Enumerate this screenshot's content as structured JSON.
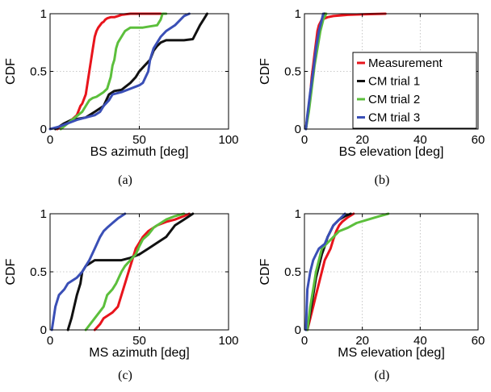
{
  "series_colors": {
    "Measurement": "#e8141c",
    "CM trial 1": "#111111",
    "CM trial 2": "#5cbf3c",
    "CM trial 3": "#3a4fb6"
  },
  "chart_data": [
    {
      "type": "line",
      "caption": "(a)",
      "xlabel": "BS azimuth [deg]",
      "ylabel": "CDF",
      "xlim": [
        0,
        100
      ],
      "ylim": [
        0,
        1
      ],
      "xticks": [
        "0",
        "50",
        "100"
      ],
      "yticks": [
        "0",
        "0.5",
        "1"
      ],
      "grid": true,
      "legend": null,
      "series": [
        {
          "name": "Measurement",
          "x": [
            4,
            10,
            15,
            17,
            18,
            20,
            21,
            22,
            23,
            24,
            25,
            26,
            27,
            28,
            29,
            30,
            31,
            32,
            34,
            36,
            38,
            40,
            45,
            50,
            58,
            62
          ],
          "y": [
            0,
            0.05,
            0.12,
            0.2,
            0.22,
            0.3,
            0.4,
            0.5,
            0.6,
            0.7,
            0.8,
            0.85,
            0.88,
            0.9,
            0.92,
            0.93,
            0.95,
            0.96,
            0.97,
            0.97,
            0.98,
            0.99,
            1,
            1,
            1,
            1
          ]
        },
        {
          "name": "CM trial 1",
          "x": [
            3,
            8,
            12,
            20,
            25,
            30,
            33,
            36,
            40,
            45,
            48,
            50,
            53,
            56,
            58,
            60,
            62,
            65,
            68,
            70,
            75,
            80,
            84,
            86,
            88
          ],
          "y": [
            0,
            0.05,
            0.08,
            0.1,
            0.15,
            0.2,
            0.3,
            0.33,
            0.34,
            0.4,
            0.45,
            0.5,
            0.55,
            0.6,
            0.68,
            0.72,
            0.75,
            0.77,
            0.77,
            0.77,
            0.77,
            0.78,
            0.9,
            0.95,
            1
          ]
        },
        {
          "name": "CM trial 2",
          "x": [
            6,
            10,
            14,
            18,
            20,
            22,
            24,
            26,
            28,
            30,
            32,
            34,
            35,
            36,
            37,
            38,
            40,
            42,
            45,
            48,
            52,
            56,
            60,
            62,
            63,
            65
          ],
          "y": [
            0,
            0.05,
            0.1,
            0.15,
            0.2,
            0.25,
            0.27,
            0.28,
            0.3,
            0.32,
            0.35,
            0.45,
            0.55,
            0.6,
            0.7,
            0.75,
            0.8,
            0.85,
            0.88,
            0.88,
            0.88,
            0.89,
            0.9,
            0.95,
            1,
            1
          ]
        },
        {
          "name": "CM trial 3",
          "x": [
            0,
            5,
            10,
            15,
            20,
            25,
            28,
            30,
            33,
            35,
            40,
            45,
            50,
            52,
            55,
            56,
            57,
            58,
            60,
            62,
            65,
            70,
            75,
            78
          ],
          "y": [
            0,
            0.02,
            0.05,
            0.08,
            0.1,
            0.12,
            0.15,
            0.2,
            0.25,
            0.3,
            0.32,
            0.35,
            0.38,
            0.4,
            0.5,
            0.6,
            0.65,
            0.7,
            0.75,
            0.8,
            0.85,
            0.9,
            0.98,
            1
          ]
        }
      ]
    },
    {
      "type": "line",
      "caption": "(b)",
      "xlabel": "BS elevation [deg]",
      "ylabel": "CDF",
      "xlim": [
        0,
        60
      ],
      "ylim": [
        0,
        1
      ],
      "xticks": [
        "0",
        "20",
        "40",
        "60"
      ],
      "yticks": [
        "0",
        "0.5",
        "1"
      ],
      "grid": true,
      "legend": "right",
      "series": [
        {
          "name": "Measurement",
          "x": [
            0.5,
            1,
            1.5,
            2,
            2.5,
            3,
            3.5,
            4,
            4.5,
            5,
            6,
            8,
            10,
            15,
            20,
            28
          ],
          "y": [
            0,
            0.1,
            0.2,
            0.3,
            0.45,
            0.55,
            0.65,
            0.75,
            0.85,
            0.9,
            0.95,
            0.97,
            0.98,
            0.99,
            0.995,
            1
          ]
        },
        {
          "name": "CM trial 1",
          "x": [
            0.5,
            1,
            2,
            3,
            4,
            5,
            6,
            7
          ],
          "y": [
            0,
            0.1,
            0.3,
            0.5,
            0.65,
            0.8,
            0.95,
            1
          ]
        },
        {
          "name": "CM trial 2",
          "x": [
            0.5,
            1.5,
            2.5,
            3.5,
            4.5,
            5.5,
            6.5,
            7.5
          ],
          "y": [
            0,
            0.15,
            0.35,
            0.55,
            0.7,
            0.85,
            0.95,
            1
          ]
        },
        {
          "name": "CM trial 3",
          "x": [
            0.5,
            1,
            2,
            3,
            4,
            5,
            6,
            6.5
          ],
          "y": [
            0,
            0.12,
            0.32,
            0.5,
            0.7,
            0.85,
            0.95,
            1
          ]
        }
      ]
    },
    {
      "type": "line",
      "caption": "(c)",
      "xlabel": "MS azimuth [deg]",
      "ylabel": "CDF",
      "xlim": [
        0,
        100
      ],
      "ylim": [
        0,
        1
      ],
      "xticks": [
        "0",
        "50",
        "100"
      ],
      "yticks": [
        "0",
        "0.5",
        "1"
      ],
      "grid": true,
      "legend": null,
      "series": [
        {
          "name": "Measurement",
          "x": [
            25,
            28,
            30,
            35,
            38,
            40,
            42,
            44,
            46,
            48,
            50,
            52,
            55,
            58,
            60,
            65,
            70,
            75,
            78
          ],
          "y": [
            0,
            0.05,
            0.1,
            0.15,
            0.2,
            0.3,
            0.4,
            0.5,
            0.6,
            0.7,
            0.75,
            0.8,
            0.85,
            0.88,
            0.9,
            0.93,
            0.95,
            0.98,
            1
          ]
        },
        {
          "name": "CM trial 1",
          "x": [
            10,
            12,
            15,
            17,
            18,
            20,
            25,
            30,
            35,
            40,
            45,
            50,
            55,
            60,
            65,
            70,
            75,
            80
          ],
          "y": [
            0,
            0.1,
            0.3,
            0.4,
            0.5,
            0.55,
            0.6,
            0.6,
            0.6,
            0.6,
            0.62,
            0.65,
            0.7,
            0.75,
            0.8,
            0.9,
            0.95,
            1
          ]
        },
        {
          "name": "CM trial 2",
          "x": [
            20,
            25,
            30,
            32,
            35,
            37,
            40,
            42,
            45,
            48,
            50,
            52,
            55,
            58,
            60,
            65,
            70,
            75
          ],
          "y": [
            0,
            0.1,
            0.2,
            0.3,
            0.35,
            0.4,
            0.5,
            0.55,
            0.6,
            0.65,
            0.72,
            0.78,
            0.82,
            0.88,
            0.9,
            0.95,
            0.98,
            1
          ]
        },
        {
          "name": "CM trial 3",
          "x": [
            1,
            3,
            5,
            8,
            10,
            15,
            18,
            20,
            22,
            25,
            28,
            30,
            32,
            35,
            38,
            40,
            42
          ],
          "y": [
            0,
            0.2,
            0.3,
            0.35,
            0.4,
            0.45,
            0.5,
            0.55,
            0.6,
            0.7,
            0.8,
            0.85,
            0.88,
            0.92,
            0.96,
            0.98,
            1
          ]
        }
      ]
    },
    {
      "type": "line",
      "caption": "(d)",
      "xlabel": "MS elevation [deg]",
      "ylabel": "CDF",
      "xlim": [
        0,
        60
      ],
      "ylim": [
        0,
        1
      ],
      "xticks": [
        "0",
        "20",
        "40",
        "60"
      ],
      "yticks": [
        "0",
        "0.5",
        "1"
      ],
      "grid": true,
      "legend": null,
      "series": [
        {
          "name": "Measurement",
          "x": [
            1,
            2,
            3,
            4,
            5,
            6,
            7,
            8,
            9,
            10,
            11,
            12,
            13,
            14,
            15,
            17
          ],
          "y": [
            0,
            0.1,
            0.2,
            0.3,
            0.4,
            0.5,
            0.6,
            0.65,
            0.7,
            0.78,
            0.85,
            0.9,
            0.93,
            0.95,
            0.97,
            1
          ]
        },
        {
          "name": "CM trial 1",
          "x": [
            1,
            2,
            3,
            4,
            5,
            6,
            7,
            8,
            9,
            10,
            12,
            14,
            16
          ],
          "y": [
            0,
            0.15,
            0.3,
            0.45,
            0.55,
            0.65,
            0.72,
            0.8,
            0.85,
            0.9,
            0.95,
            0.98,
            1
          ]
        },
        {
          "name": "CM trial 2",
          "x": [
            1,
            2,
            3,
            4,
            5,
            6,
            8,
            10,
            12,
            15,
            18,
            22,
            26,
            29
          ],
          "y": [
            0,
            0.2,
            0.35,
            0.5,
            0.6,
            0.7,
            0.75,
            0.8,
            0.85,
            0.88,
            0.92,
            0.95,
            0.98,
            1
          ]
        },
        {
          "name": "CM trial 3",
          "x": [
            0.5,
            1,
            2,
            3,
            4,
            5,
            6,
            7,
            8,
            9,
            10,
            12,
            14
          ],
          "y": [
            0,
            0.35,
            0.5,
            0.6,
            0.65,
            0.7,
            0.72,
            0.74,
            0.8,
            0.85,
            0.9,
            0.95,
            1
          ]
        }
      ]
    }
  ]
}
